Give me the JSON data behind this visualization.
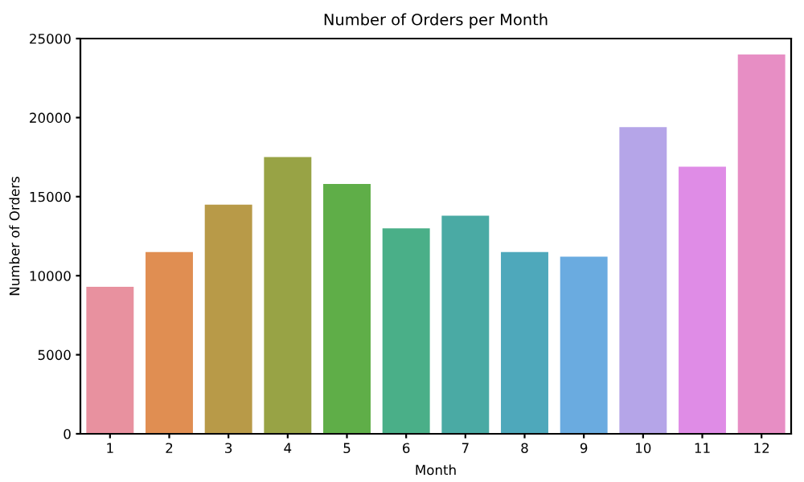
{
  "chart_data": {
    "type": "bar",
    "title": "Number of Orders per Month",
    "xlabel": "Month",
    "ylabel": "Number of Orders",
    "categories": [
      "1",
      "2",
      "3",
      "4",
      "5",
      "6",
      "7",
      "8",
      "9",
      "10",
      "11",
      "12"
    ],
    "values": [
      9300,
      11500,
      14500,
      17500,
      15800,
      13000,
      13800,
      11500,
      11200,
      19400,
      16900,
      24000
    ],
    "colors": [
      "#e8919f",
      "#e08e52",
      "#b89a48",
      "#98a345",
      "#5fae48",
      "#4aaf88",
      "#4aaaa4",
      "#4ea8bb",
      "#6aabe0",
      "#b5a5e8",
      "#df8ce6",
      "#e78ec4"
    ],
    "ylim": [
      0,
      25000
    ],
    "yticks": [
      0,
      5000,
      10000,
      15000,
      20000,
      25000
    ],
    "grid": false
  }
}
